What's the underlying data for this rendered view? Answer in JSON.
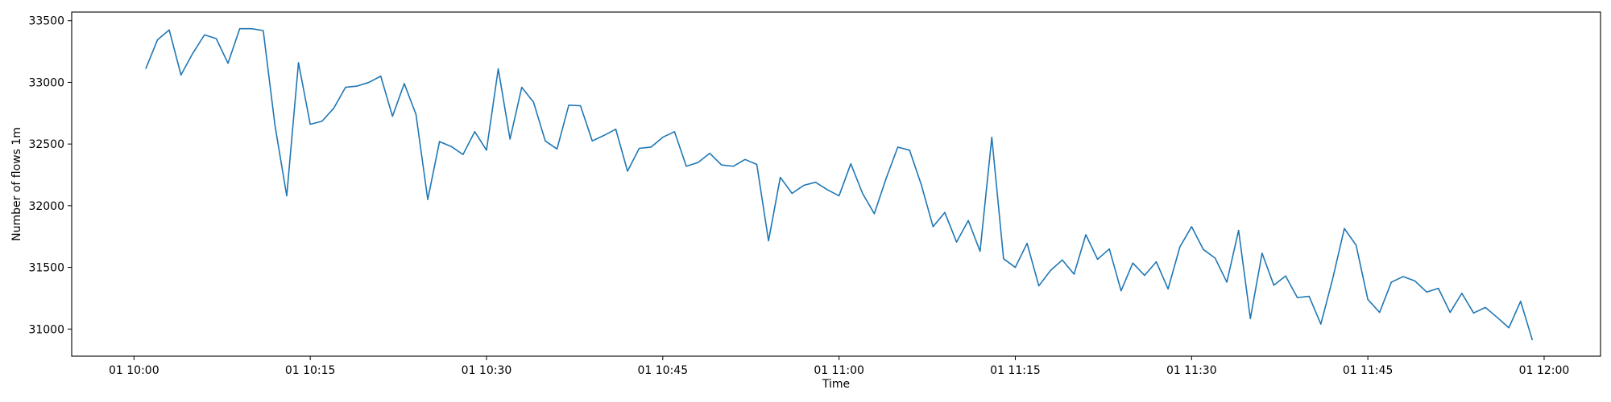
{
  "chart_data": {
    "type": "line",
    "title": "",
    "xlabel": "Time",
    "ylabel": "Number of flows 1m",
    "grid": false,
    "legend": "none",
    "xlim_minutes_after_10": [
      -5.3,
      124.8
    ],
    "ylim": [
      30780,
      33570
    ],
    "yticks": [
      31000,
      31500,
      32000,
      32500,
      33000,
      33500
    ],
    "xticks": [
      {
        "label": "01 10:00",
        "minute": 0
      },
      {
        "label": "01 10:15",
        "minute": 15
      },
      {
        "label": "01 10:30",
        "minute": 30
      },
      {
        "label": "01 10:45",
        "minute": 45
      },
      {
        "label": "01 11:00",
        "minute": 60
      },
      {
        "label": "01 11:15",
        "minute": 75
      },
      {
        "label": "01 11:30",
        "minute": 90
      },
      {
        "label": "01 11:45",
        "minute": 105
      },
      {
        "label": "01 12:00",
        "minute": 120
      }
    ],
    "series": [
      {
        "color": "#1f77b4",
        "start_minute": 1,
        "step_minutes": 1,
        "values": [
          33110,
          33345,
          33425,
          33060,
          33235,
          33385,
          33355,
          33155,
          33435,
          33435,
          33420,
          32650,
          32080,
          33160,
          32660,
          32685,
          32790,
          32960,
          32970,
          33000,
          33050,
          32725,
          32990,
          32740,
          32050,
          32520,
          32480,
          32415,
          32600,
          32450,
          33110,
          32540,
          32960,
          32840,
          32525,
          32460,
          32815,
          32810,
          32525,
          32570,
          32620,
          32280,
          32465,
          32475,
          32555,
          32600,
          32320,
          32350,
          32425,
          32330,
          32320,
          32375,
          32335,
          31715,
          32230,
          32100,
          32165,
          32190,
          32130,
          32080,
          32340,
          32100,
          31935,
          32220,
          32475,
          32450,
          32170,
          31830,
          31945,
          31705,
          31880,
          31630,
          32555,
          31570,
          31500,
          31695,
          31350,
          31475,
          31560,
          31445,
          31765,
          31565,
          31650,
          31310,
          31535,
          31435,
          31545,
          31325,
          31665,
          31830,
          31645,
          31575,
          31380,
          31800,
          31085,
          31615,
          31355,
          31430,
          31255,
          31265,
          31040,
          31405,
          31815,
          31680,
          31240,
          31135,
          31380,
          31425,
          31390,
          31300,
          31330,
          31135,
          31290,
          31130,
          31175,
          31095,
          31010,
          31225,
          30910
        ]
      }
    ]
  }
}
